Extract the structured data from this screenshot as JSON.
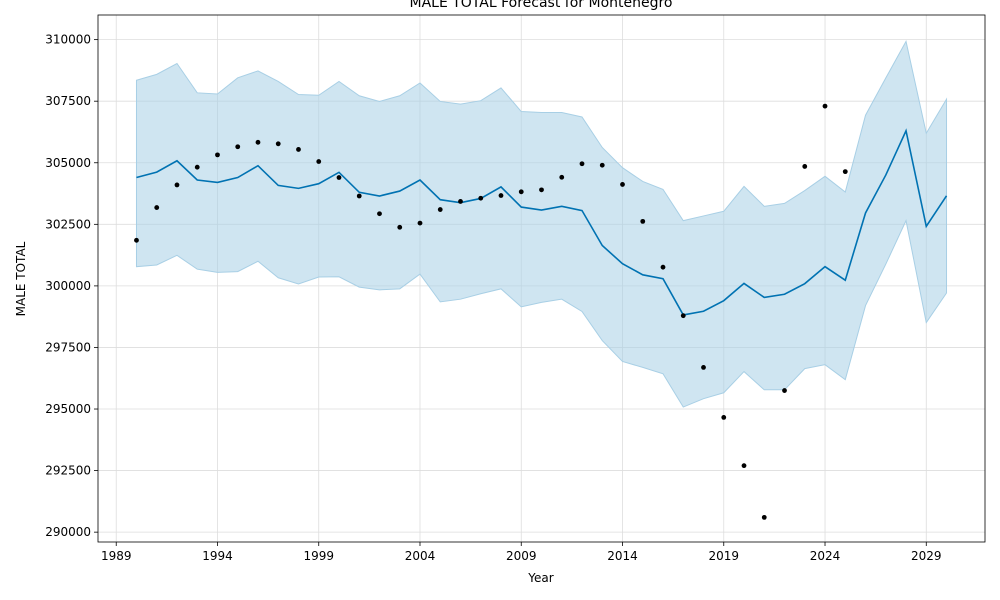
{
  "chart_data": {
    "type": "line",
    "title": "MALE TOTAL Forecast for Montenegro",
    "xlabel": "Year",
    "ylabel": "MALE TOTAL",
    "xlim": [
      1988.1,
      2031.9
    ],
    "ylim": [
      289600,
      311000
    ],
    "x_ticks": [
      1989,
      1994,
      1999,
      2004,
      2009,
      2014,
      2019,
      2024,
      2029
    ],
    "y_ticks": [
      290000,
      292500,
      295000,
      297500,
      300000,
      302500,
      305000,
      307500,
      310000
    ],
    "grid": true,
    "colors": {
      "forecast": "#0072b2",
      "band": "#a8cfe5",
      "observed": "#000000"
    },
    "forecast": {
      "x": [
        1990,
        1991,
        1992,
        1993,
        1994,
        1995,
        1996,
        1997,
        1998,
        1999,
        2000,
        2001,
        2002,
        2003,
        2004,
        2005,
        2006,
        2007,
        2008,
        2009,
        2010,
        2011,
        2012,
        2013,
        2014,
        2015,
        2016,
        2017,
        2018,
        2019,
        2020,
        2021,
        2022,
        2023,
        2024,
        2025,
        2026,
        2027,
        2028,
        2029,
        2030
      ],
      "yhat": [
        304400,
        304620,
        305080,
        304300,
        304200,
        304400,
        304880,
        304080,
        303960,
        304150,
        304610,
        303800,
        303650,
        303850,
        304300,
        303500,
        303380,
        303550,
        304020,
        303200,
        303080,
        303230,
        303060,
        301640,
        300900,
        300450,
        300290,
        298820,
        298970,
        299400,
        300100,
        299530,
        299660,
        300090,
        300780,
        300230,
        302960,
        304500,
        306300,
        302420,
        303660
      ],
      "yhat_lower": [
        300780,
        300850,
        301240,
        300680,
        300550,
        300580,
        301000,
        300330,
        300080,
        300360,
        300370,
        299950,
        299840,
        299880,
        300480,
        299350,
        299460,
        299680,
        299880,
        299150,
        299330,
        299460,
        298960,
        297780,
        296930,
        296690,
        296430,
        295080,
        295420,
        295660,
        296520,
        295780,
        295780,
        296640,
        296800,
        296190,
        299200,
        300880,
        302650,
        298510,
        299710
      ],
      "yhat_upper": [
        308350,
        308590,
        309030,
        307840,
        307790,
        308450,
        308730,
        308300,
        307770,
        307740,
        308300,
        307720,
        307490,
        307720,
        308240,
        307490,
        307380,
        307520,
        308040,
        307080,
        307040,
        307040,
        306860,
        305620,
        304800,
        304240,
        303920,
        302650,
        302840,
        303030,
        304040,
        303230,
        303350,
        303870,
        304450,
        303810,
        306930,
        308440,
        309930,
        306200,
        307580
      ]
    },
    "observed": {
      "x": [
        1990,
        1991,
        1992,
        1993,
        1994,
        1995,
        1996,
        1997,
        1998,
        1999,
        2000,
        2001,
        2002,
        2003,
        2004,
        2005,
        2006,
        2007,
        2008,
        2009,
        2010,
        2011,
        2012,
        2013,
        2014,
        2015,
        2016,
        2017,
        2018,
        2019,
        2020,
        2021,
        2022,
        2023,
        2024,
        2025
      ],
      "y": [
        301850,
        303180,
        304100,
        304820,
        305320,
        305650,
        305830,
        305770,
        305540,
        305050,
        304400,
        303650,
        302930,
        302380,
        302550,
        303100,
        303430,
        303560,
        303670,
        303820,
        303900,
        304410,
        304960,
        304900,
        304120,
        302620,
        300760,
        298790,
        296690,
        294660,
        292700,
        290600,
        295750,
        304850,
        307300,
        304640
      ]
    }
  }
}
